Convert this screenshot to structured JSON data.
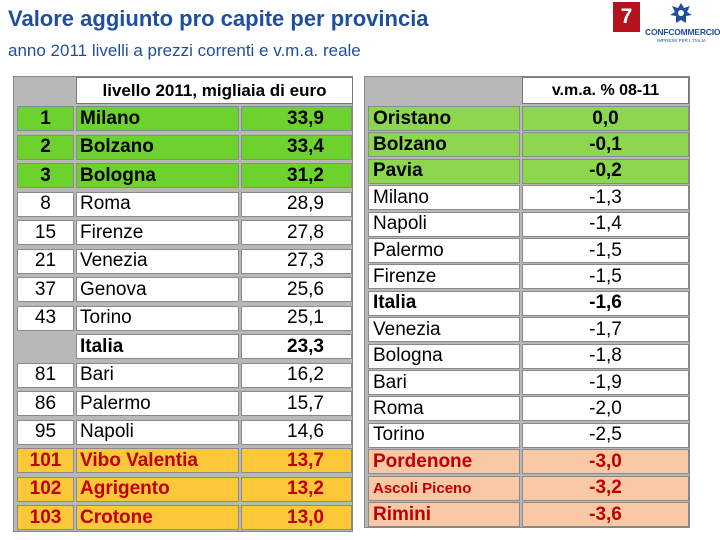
{
  "header": {
    "title": "Valore aggiunto pro capite per provincia",
    "subtitle": "anno 2011 livelli a prezzi correnti e v.m.a. reale",
    "page_number": "7",
    "logo_text": "CONFCOMMERCIO",
    "logo_subtext": "IMPRESE PER L'ITALIA"
  },
  "left_table": {
    "header": "livello 2011, migliaia di euro",
    "rows": [
      {
        "rank": "1",
        "province": "Milano",
        "value": "33,9",
        "group": "top"
      },
      {
        "rank": "2",
        "province": "Bolzano",
        "value": "33,4",
        "group": "top"
      },
      {
        "rank": "3",
        "province": "Bologna",
        "value": "31,2",
        "group": "top"
      },
      {
        "rank": "8",
        "province": "Roma",
        "value": "28,9",
        "group": "mid"
      },
      {
        "rank": "15",
        "province": "Firenze",
        "value": "27,8",
        "group": "mid"
      },
      {
        "rank": "21",
        "province": "Venezia",
        "value": "27,3",
        "group": "mid"
      },
      {
        "rank": "37",
        "province": "Genova",
        "value": "25,6",
        "group": "mid"
      },
      {
        "rank": "43",
        "province": "Torino",
        "value": "25,1",
        "group": "mid"
      },
      {
        "rank": "",
        "province": "Italia",
        "value": "23,3",
        "group": "italia"
      },
      {
        "rank": "81",
        "province": "Bari",
        "value": "16,2",
        "group": "mid"
      },
      {
        "rank": "86",
        "province": "Palermo",
        "value": "15,7",
        "group": "mid"
      },
      {
        "rank": "95",
        "province": "Napoli",
        "value": "14,6",
        "group": "mid"
      },
      {
        "rank": "101",
        "province": "Vibo Valentia",
        "value": "13,7",
        "group": "bottom"
      },
      {
        "rank": "102",
        "province": "Agrigento",
        "value": "13,2",
        "group": "bottom"
      },
      {
        "rank": "103",
        "province": "Crotone",
        "value": "13,0",
        "group": "bottom"
      }
    ]
  },
  "right_table": {
    "header": "v.m.a. % 08-11",
    "rows": [
      {
        "province": "Oristano",
        "value": "0,0",
        "group": "top"
      },
      {
        "province": "Bolzano",
        "value": "-0,1",
        "group": "top"
      },
      {
        "province": "Pavia",
        "value": "-0,2",
        "group": "top"
      },
      {
        "province": "Milano",
        "value": "-1,3",
        "group": "mid"
      },
      {
        "province": "Napoli",
        "value": "-1,4",
        "group": "mid"
      },
      {
        "province": "Palermo",
        "value": "-1,5",
        "group": "mid"
      },
      {
        "province": "Firenze",
        "value": "-1,5",
        "group": "mid"
      },
      {
        "province": "Italia",
        "value": "-1,6",
        "group": "italia"
      },
      {
        "province": "Venezia",
        "value": "-1,7",
        "group": "mid"
      },
      {
        "province": "Bologna",
        "value": "-1,8",
        "group": "mid"
      },
      {
        "province": "Bari",
        "value": "-1,9",
        "group": "mid"
      },
      {
        "province": "Roma",
        "value": "-2,0",
        "group": "mid"
      },
      {
        "province": "Torino",
        "value": "-2,5",
        "group": "mid"
      },
      {
        "province": "Pordenone",
        "value": "-3,0",
        "group": "bottom"
      },
      {
        "province": "Ascoli Piceno",
        "value": "-3,2",
        "group": "bottom"
      },
      {
        "province": "Rimini",
        "value": "-3,6",
        "group": "bottom"
      }
    ]
  },
  "colors": {
    "title": "#1f4f9c",
    "badge": "#b5121b",
    "top_left": "#6cd32e",
    "top_right": "#8cd74e",
    "bottom_left": "#fdc73a",
    "bottom_right": "#f9c8a4",
    "bottom_text": "#c00000"
  }
}
